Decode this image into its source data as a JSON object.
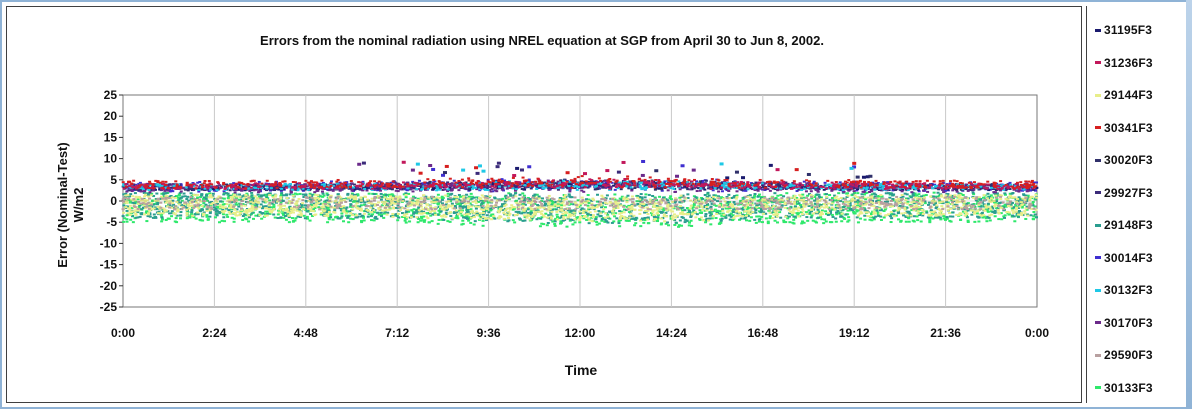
{
  "chart_data": {
    "type": "scatter",
    "title": "Errors from the nominal radiation using NREL equation at SGP from April 30 to Jun 8, 2002.",
    "xlabel": "Time",
    "ylabel": "Error (Nominal-Test) W/m2",
    "ylabel_lines": [
      "Error (Nominal-Test)",
      "W/m2"
    ],
    "x_ticks": [
      "0:00",
      "2:24",
      "4:48",
      "7:12",
      "9:36",
      "12:00",
      "14:24",
      "16:48",
      "19:12",
      "21:36",
      "0:00"
    ],
    "y_ticks": [
      25,
      20,
      15,
      10,
      5,
      0,
      -5,
      -10,
      -15,
      -20,
      -25
    ],
    "xlim": [
      "0:00",
      "24:00"
    ],
    "ylim": [
      -25,
      25
    ],
    "grid": "vertical",
    "legend_position": "right",
    "series": [
      {
        "name": "31195F3",
        "color": "#1a1a6e",
        "band": [
          2.5,
          3.8
        ]
      },
      {
        "name": "31236F3",
        "color": "#c2185b",
        "band": [
          2.8,
          4.2
        ]
      },
      {
        "name": "29144F3",
        "color": "#e8ee8a",
        "band": [
          -3.5,
          1.5
        ]
      },
      {
        "name": "30341F3",
        "color": "#d61f1f",
        "band": [
          3.0,
          4.8
        ]
      },
      {
        "name": "30020F3",
        "color": "#30306a",
        "band": [
          2.5,
          4.0
        ]
      },
      {
        "name": "29927F3",
        "color": "#3b2b7a",
        "band": [
          2.5,
          4.0
        ]
      },
      {
        "name": "29148F3",
        "color": "#2a9d8f",
        "band": [
          -4.0,
          2.0
        ]
      },
      {
        "name": "30014F3",
        "color": "#3f2fd0",
        "band": [
          2.2,
          4.5
        ]
      },
      {
        "name": "30132F3",
        "color": "#1ec8e6",
        "band": [
          2.5,
          4.0
        ]
      },
      {
        "name": "30170F3",
        "color": "#6b2a8a",
        "band": [
          2.0,
          4.0
        ]
      },
      {
        "name": "29590F3",
        "color": "#b8a0a0",
        "band": [
          -2.0,
          1.0
        ]
      },
      {
        "name": "30133F3",
        "color": "#2ee86b",
        "band": [
          -5.0,
          2.0
        ]
      }
    ]
  }
}
